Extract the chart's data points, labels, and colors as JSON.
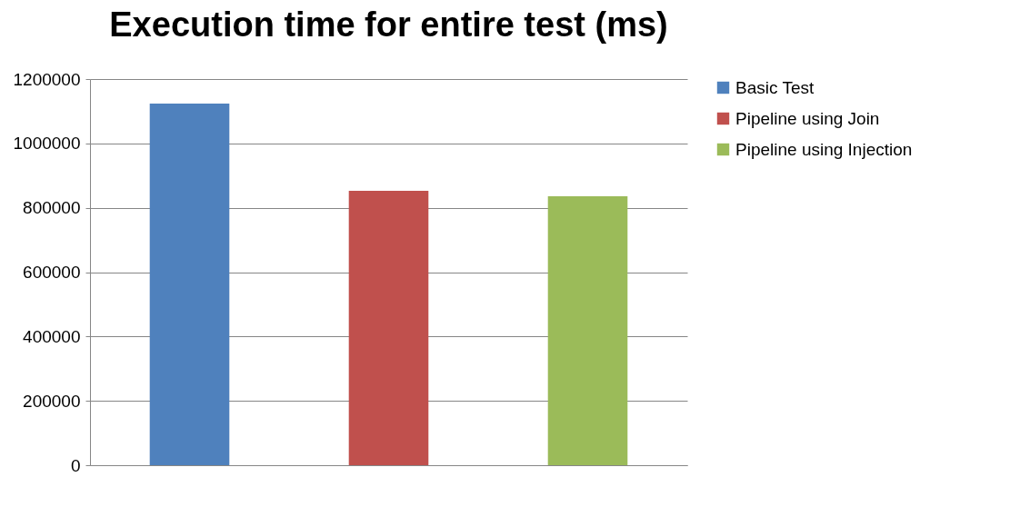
{
  "chart_data": {
    "type": "bar",
    "title": "Execution time for entire test (ms)",
    "categories": [
      null
    ],
    "series": [
      {
        "name": "Basic Test",
        "color": "#4f81bd",
        "values": [
          1124000
        ]
      },
      {
        "name": "Pipeline using Join",
        "color": "#c0504d",
        "values": [
          853000
        ]
      },
      {
        "name": "Pipeline using Injection",
        "color": "#9bbb59",
        "values": [
          836000
        ]
      }
    ],
    "ylim": [
      0,
      1200000
    ],
    "yticks": [
      0,
      200000,
      400000,
      600000,
      800000,
      1000000,
      1200000
    ],
    "grid": "y",
    "legend": "right",
    "tick_labels": "y"
  }
}
